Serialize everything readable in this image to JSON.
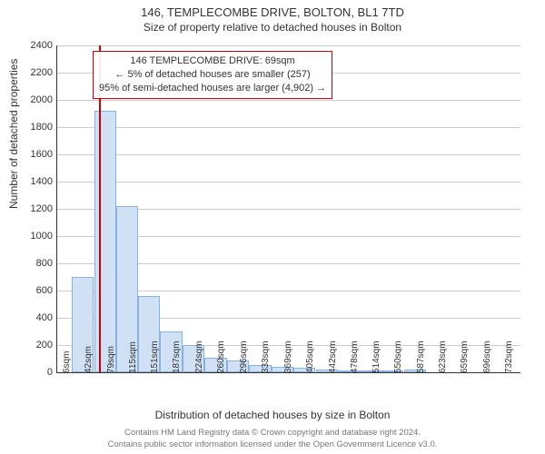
{
  "title": "146, TEMPLECOMBE DRIVE, BOLTON, BL1 7TD",
  "subtitle": "Size of property relative to detached houses in Bolton",
  "ylabel": "Number of detached properties",
  "xlabel": "Distribution of detached houses by size in Bolton",
  "footer_line1": "Contains HM Land Registry data © Crown copyright and database right 2024.",
  "footer_line2": "Contains public sector information licensed under the Open Government Licence v3.0.",
  "annotation": {
    "line1": "146 TEMPLECOMBE DRIVE: 69sqm",
    "line2": "← 5% of detached houses are smaller (257)",
    "line3": "95% of semi-detached houses are larger (4,902) →"
  },
  "chart": {
    "type": "histogram",
    "ylim": [
      0,
      2400
    ],
    "ytick_step": 200,
    "bar_fill": "#d0e0f5",
    "bar_stroke": "#8ab0e0",
    "grid_color": "#cccccc",
    "background_color": "#ffffff",
    "marker_color": "#cc0000",
    "marker_x_sqm": 69,
    "x_min_sqm": 0,
    "x_max_sqm": 760,
    "xtick_labels": [
      "6sqm",
      "42sqm",
      "79sqm",
      "115sqm",
      "151sqm",
      "187sqm",
      "224sqm",
      "260sqm",
      "296sqm",
      "333sqm",
      "369sqm",
      "405sqm",
      "442sqm",
      "478sqm",
      "514sqm",
      "550sqm",
      "587sqm",
      "623sqm",
      "659sqm",
      "696sqm",
      "732sqm"
    ],
    "bars": [
      {
        "sqm": 42,
        "count": 700
      },
      {
        "sqm": 79,
        "count": 1920
      },
      {
        "sqm": 115,
        "count": 1220
      },
      {
        "sqm": 151,
        "count": 560
      },
      {
        "sqm": 187,
        "count": 300
      },
      {
        "sqm": 224,
        "count": 200
      },
      {
        "sqm": 260,
        "count": 110
      },
      {
        "sqm": 296,
        "count": 90
      },
      {
        "sqm": 333,
        "count": 55
      },
      {
        "sqm": 369,
        "count": 40
      },
      {
        "sqm": 405,
        "count": 35
      },
      {
        "sqm": 442,
        "count": 20
      },
      {
        "sqm": 478,
        "count": 8
      },
      {
        "sqm": 514,
        "count": 15
      },
      {
        "sqm": 550,
        "count": 5
      },
      {
        "sqm": 587,
        "count": 20
      },
      {
        "sqm": 623,
        "count": 0
      },
      {
        "sqm": 659,
        "count": 0
      },
      {
        "sqm": 696,
        "count": 0
      },
      {
        "sqm": 732,
        "count": 0
      }
    ],
    "bar_width_sqm": 36,
    "title_fontsize": 13,
    "label_fontsize": 12,
    "tick_fontsize": 11
  }
}
